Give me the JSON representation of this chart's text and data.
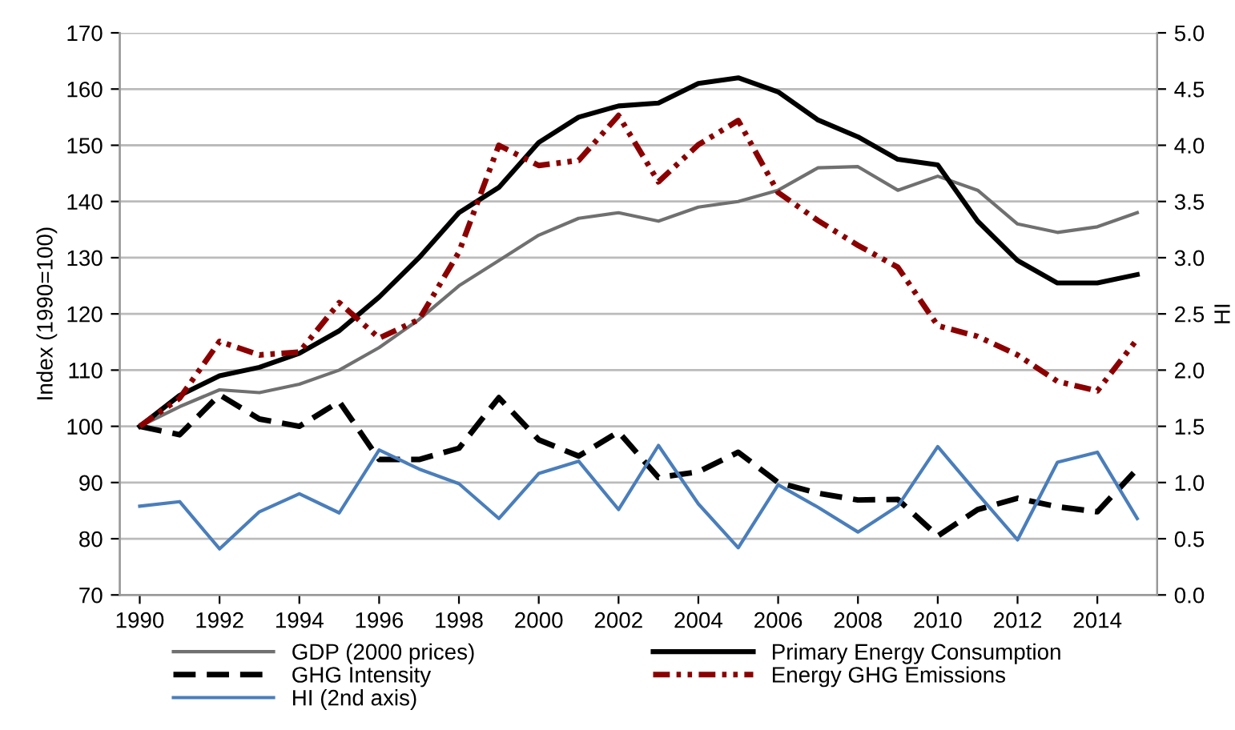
{
  "chart_data": {
    "type": "line",
    "ylabel": "Index (1990=100)",
    "y2label": "HI",
    "x": [
      1990,
      1991,
      1992,
      1993,
      1994,
      1995,
      1996,
      1997,
      1998,
      1999,
      2000,
      2001,
      2002,
      2003,
      2004,
      2005,
      2006,
      2007,
      2008,
      2009,
      2010,
      2011,
      2012,
      2013,
      2014,
      2015
    ],
    "xlim": [
      1989.5,
      2015.5
    ],
    "xticks": [
      1990,
      1992,
      1994,
      1996,
      1998,
      2000,
      2002,
      2004,
      2006,
      2008,
      2010,
      2012,
      2014
    ],
    "ylim": [
      70,
      170
    ],
    "yticks": [
      70,
      80,
      90,
      100,
      110,
      120,
      130,
      140,
      150,
      160,
      170
    ],
    "y2lim": [
      0,
      5
    ],
    "y2ticks": [
      {
        "value": 0,
        "label": "0.0"
      },
      {
        "value": 0.5,
        "label": "0.5"
      },
      {
        "value": 1,
        "label": "1.0"
      },
      {
        "value": 1.5,
        "label": "1.5"
      },
      {
        "value": 2,
        "label": "2.0"
      },
      {
        "value": 2.5,
        "label": "2.5"
      },
      {
        "value": 3,
        "label": "3.0"
      },
      {
        "value": 3.5,
        "label": "3.5"
      },
      {
        "value": 4,
        "label": "4.0"
      },
      {
        "value": 4.5,
        "label": "4.5"
      },
      {
        "value": 5,
        "label": "5.0"
      }
    ],
    "grid": "y",
    "legend": "bottom",
    "marker": "none",
    "series": [
      {
        "name": "GDP (2000 prices)",
        "color": "#707070",
        "line_style": "solid",
        "values": [
          100,
          103.5,
          106.5,
          106,
          107.5,
          110,
          114,
          119,
          125,
          129.5,
          134,
          137,
          138,
          136.5,
          139,
          140,
          142,
          146,
          146.2,
          142,
          144.5,
          142,
          136,
          134.5,
          135.5,
          138
        ]
      },
      {
        "name": "Primary Energy Consumption",
        "color": "#000000",
        "line_style": "solid",
        "values": [
          100,
          105.5,
          109,
          110.5,
          113,
          117,
          123,
          130,
          138,
          142.5,
          150.5,
          155,
          157,
          157.5,
          161,
          162,
          159.5,
          154.5,
          151.5,
          147.5,
          146.5,
          136.5,
          129.5,
          125.5,
          125.5,
          127
        ]
      },
      {
        "name": "GHG Intensity",
        "color": "#000000",
        "line_style": "dashed",
        "values": [
          100,
          98.5,
          105.6,
          101.3,
          100,
          104.4,
          94.1,
          94.1,
          96.1,
          105.1,
          97.6,
          94.7,
          99,
          90.9,
          91.9,
          95.4,
          90,
          88.1,
          86.9,
          87,
          80.5,
          85.2,
          87.2,
          85.7,
          84.8,
          92.4
        ]
      },
      {
        "name": "Energy GHG Emissions",
        "color": "#8b0000",
        "line_style": "dashdotdot",
        "values": [
          100,
          105,
          115.1,
          112.7,
          113.2,
          122,
          115.7,
          119,
          131,
          150,
          146.4,
          147.3,
          155.3,
          143.5,
          150.1,
          154.4,
          141.6,
          136.6,
          132.2,
          128.3,
          117.9,
          116,
          112.7,
          108,
          106.3,
          115.5
        ]
      },
      {
        "name": "HI (2nd axis)",
        "color": "#4a7ebb",
        "line_style": "solid",
        "axis": "y2",
        "values": [
          0.79,
          0.83,
          0.41,
          0.74,
          0.9,
          0.73,
          1.29,
          1.12,
          0.99,
          0.68,
          1.08,
          1.19,
          0.76,
          1.33,
          0.81,
          0.42,
          0.98,
          0.78,
          0.56,
          0.79,
          1.32,
          0.9,
          0.49,
          1.18,
          1.27,
          0.68
        ]
      }
    ]
  }
}
